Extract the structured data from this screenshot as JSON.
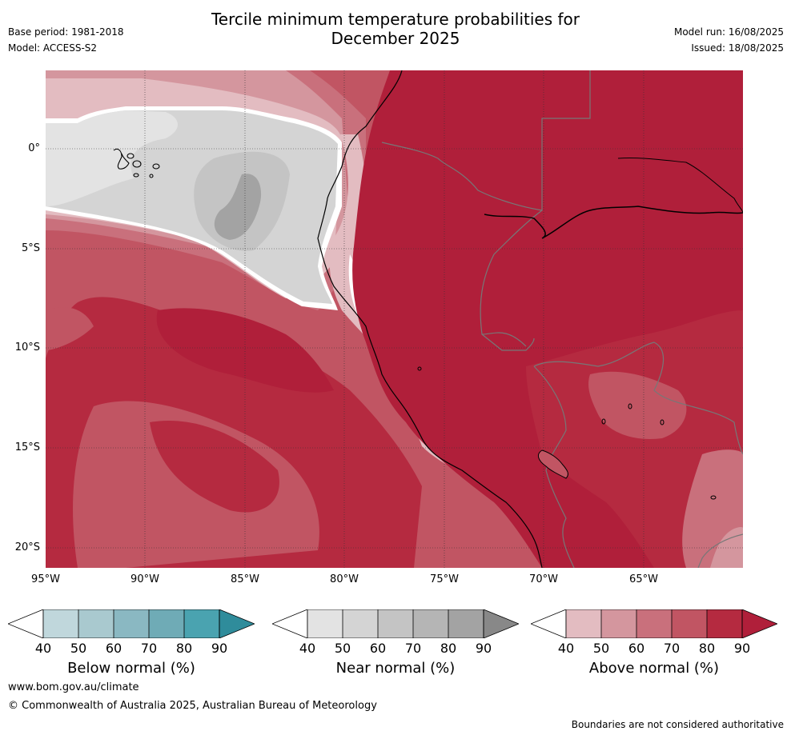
{
  "title_line1": "Tercile minimum temperature probabilities for",
  "title_line2": "December 2025",
  "base_period": "Base period: 1981-2018",
  "model": "Model: ACCESS-S2",
  "model_run": "Model run: 16/08/2025",
  "issued": "Issued: 18/08/2025",
  "map": {
    "lon_range": [
      -95,
      -60
    ],
    "lat_range": [
      -21,
      4
    ],
    "lat_ticks": [
      "0°",
      "5°S",
      "10°S",
      "15°S",
      "20°S"
    ],
    "lon_ticks": [
      "95°W",
      "90°W",
      "85°W",
      "80°W",
      "75°W",
      "70°W",
      "65°W"
    ]
  },
  "colorbars": [
    {
      "label": "Below normal (%)",
      "ticks": [
        "40",
        "50",
        "60",
        "70",
        "80",
        "90"
      ],
      "colors": [
        "#c0d7dc",
        "#a9c9cf",
        "#8ab8c2",
        "#6fabb6",
        "#4aa3b0",
        "#2f8c9b"
      ]
    },
    {
      "label": "Near normal (%)",
      "ticks": [
        "40",
        "50",
        "60",
        "70",
        "80",
        "90"
      ],
      "colors": [
        "#e3e3e3",
        "#d4d4d4",
        "#c4c4c4",
        "#b5b5b5",
        "#a3a3a3",
        "#888888"
      ]
    },
    {
      "label": "Above normal (%)",
      "ticks": [
        "40",
        "50",
        "60",
        "70",
        "80",
        "90"
      ],
      "colors": [
        "#e3bcc1",
        "#d4969e",
        "#c9707c",
        "#c15563",
        "#b52a40",
        "#b01f3a"
      ]
    }
  ],
  "website": "www.bom.gov.au/climate",
  "copyright": "© Commonwealth of Australia 2025, Australian Bureau of Meteorology",
  "disclaimer": "Boundaries are not considered authoritative"
}
